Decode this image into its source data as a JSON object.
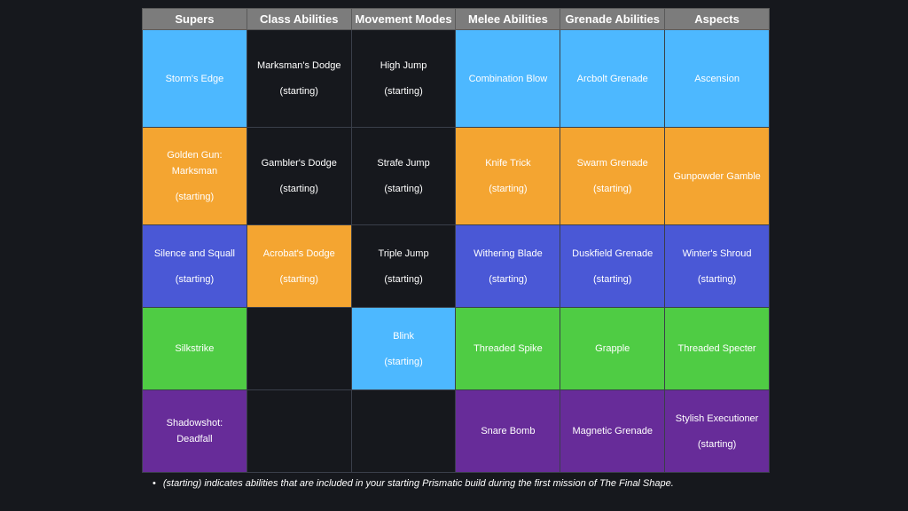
{
  "colors": {
    "page_background": "#16181d",
    "header_background": "#7c7c7c",
    "empty_cell": "#16181d",
    "arc": "#4db8ff",
    "solar": "#f4a531",
    "void_stasis": "#4a58d6",
    "strand": "#4fcc44",
    "void": "#672c99"
  },
  "headers": [
    "Supers",
    "Class Abilities",
    "Movement Modes",
    "Melee Abilities",
    "Grenade Abilities",
    "Aspects"
  ],
  "rows": [
    [
      {
        "label": "Storm's Edge",
        "color": "#4db8ff"
      },
      {
        "label": "Marksman's Dodge",
        "starting": "(starting)",
        "color": "#16181d"
      },
      {
        "label": "High Jump",
        "starting": "(starting)",
        "color": "#16181d"
      },
      {
        "label": "Combination Blow",
        "color": "#4db8ff"
      },
      {
        "label": "Arcbolt Grenade",
        "color": "#4db8ff"
      },
      {
        "label": "Ascension",
        "color": "#4db8ff"
      }
    ],
    [
      {
        "label": "Golden Gun: Marksman",
        "starting": "(starting)",
        "color": "#f4a531"
      },
      {
        "label": "Gambler's Dodge",
        "starting": "(starting)",
        "color": "#16181d"
      },
      {
        "label": "Strafe Jump",
        "starting": "(starting)",
        "color": "#16181d"
      },
      {
        "label": "Knife Trick",
        "starting": "(starting)",
        "color": "#f4a531"
      },
      {
        "label": "Swarm Grenade",
        "starting": "(starting)",
        "color": "#f4a531"
      },
      {
        "label": "Gunpowder Gamble",
        "color": "#f4a531"
      }
    ],
    [
      {
        "label": "Silence and Squall",
        "starting": "(starting)",
        "color": "#4a58d6"
      },
      {
        "label": "Acrobat's Dodge",
        "starting": "(starting)",
        "color": "#f4a531"
      },
      {
        "label": "Triple Jump",
        "starting": "(starting)",
        "color": "#16181d"
      },
      {
        "label": "Withering Blade",
        "starting": "(starting)",
        "color": "#4a58d6"
      },
      {
        "label": "Duskfield Grenade",
        "starting": "(starting)",
        "color": "#4a58d6"
      },
      {
        "label": "Winter's Shroud",
        "starting": "(starting)",
        "color": "#4a58d6"
      }
    ],
    [
      {
        "label": "Silkstrike",
        "color": "#4fcc44"
      },
      {
        "label": "",
        "color": "#16181d"
      },
      {
        "label": "Blink",
        "starting": "(starting)",
        "color": "#4db8ff"
      },
      {
        "label": "Threaded Spike",
        "color": "#4fcc44"
      },
      {
        "label": "Grapple",
        "color": "#4fcc44"
      },
      {
        "label": "Threaded Specter",
        "color": "#4fcc44"
      }
    ],
    [
      {
        "label": "Shadowshot: Deadfall",
        "color": "#672c99"
      },
      {
        "label": "",
        "color": "#16181d"
      },
      {
        "label": "",
        "color": "#16181d"
      },
      {
        "label": "Snare Bomb",
        "color": "#672c99"
      },
      {
        "label": "Magnetic Grenade",
        "color": "#672c99"
      },
      {
        "label": "Stylish Executioner",
        "starting": "(starting)",
        "color": "#672c99"
      }
    ]
  ],
  "note": {
    "bullet": "•",
    "text": "(starting) indicates abilities that are included in your starting Prismatic build during the first mission of The Final Shape."
  }
}
